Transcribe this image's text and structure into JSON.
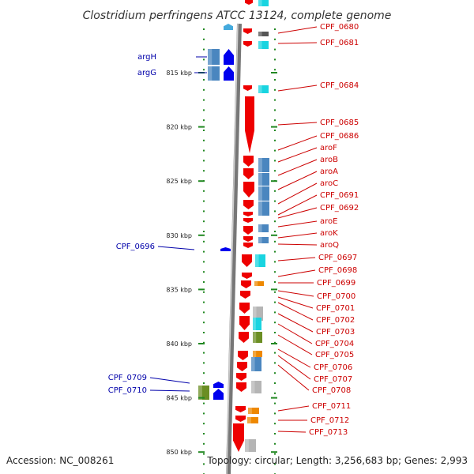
{
  "title": "Clostridium perfringens ATCC 13124, complete genome",
  "footer": {
    "accession": "Accession: NC_008261",
    "summary": "Topology: circular; Length: 3,256,683 bp; Genes: 2,993"
  },
  "colors": {
    "forward_label": "#0000aa",
    "reverse_label": "#cc0000",
    "forward_gene": "#0000ee",
    "reverse_gene": "#ee0000",
    "cds_blue": "#4a86bf",
    "cds_cyan": "#19d4e0",
    "cds_gray": "#b5b5b5",
    "cds_orange": "#ee8800",
    "cds_olive": "#6b8e23",
    "tick_green": "#228822",
    "backbone": "#888888"
  },
  "ruler": [
    {
      "kbp": 815,
      "label": "815 kbp"
    },
    {
      "kbp": 820,
      "label": "820 kbp"
    },
    {
      "kbp": 825,
      "label": "825 kbp"
    },
    {
      "kbp": 830,
      "label": "830 kbp"
    },
    {
      "kbp": 835,
      "label": "835 kbp"
    },
    {
      "kbp": 840,
      "label": "840 kbp"
    },
    {
      "kbp": 845,
      "label": "845 kbp"
    },
    {
      "kbp": 850,
      "label": "850 kbp"
    }
  ],
  "forward_labels": [
    "argH",
    "argG",
    "CPF_0696",
    "CPF_0709",
    "CPF_0710"
  ],
  "reverse_labels": [
    "CPF_0680",
    "CPF_0681",
    "CPF_0684",
    "CPF_0685",
    "CPF_0686",
    "aroF",
    "aroB",
    "aroA",
    "aroC",
    "CPF_0691",
    "CPF_0692",
    "aroE",
    "aroK",
    "aroQ",
    "CPF_0697",
    "CPF_0698",
    "CPF_0699",
    "CPF_0700",
    "CPF_0701",
    "CPF_0702",
    "CPF_0703",
    "CPF_0704",
    "CPF_0705",
    "CPF_0706",
    "CPF_0707",
    "CPF_0708",
    "CPF_0711",
    "CPF_0712",
    "CPF_0713"
  ]
}
